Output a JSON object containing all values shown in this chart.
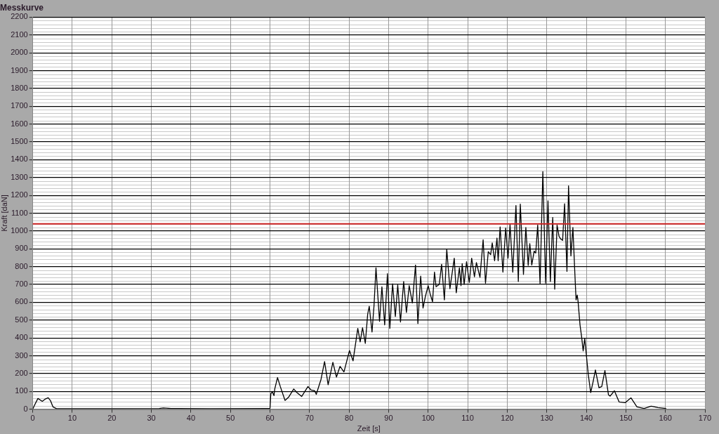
{
  "chart_data": {
    "type": "line",
    "title": "Messkurve",
    "xlabel": "Zeit [s]",
    "ylabel": "Kraft [daN]",
    "xlim": [
      0,
      170
    ],
    "xticks": [
      0,
      10,
      20,
      30,
      40,
      50,
      60,
      70,
      80,
      90,
      100,
      110,
      120,
      130,
      140,
      150,
      160,
      170
    ],
    "ylim": [
      0,
      2200
    ],
    "yticks": [
      0,
      100,
      200,
      300,
      400,
      500,
      600,
      700,
      800,
      900,
      1000,
      1100,
      1200,
      1300,
      1400,
      1500,
      1600,
      1700,
      1800,
      1900,
      2000,
      2100,
      2200
    ],
    "grid": true,
    "legend": false,
    "marker": "none",
    "line_style": "solid",
    "ref_lines": [
      {
        "axis": "y",
        "value": 1040,
        "color": "#cc2222"
      }
    ],
    "series": [
      {
        "color": "#000000",
        "x": [
          0,
          0.4,
          1.3,
          2.4,
          3.1,
          3.9,
          4.5,
          5.1,
          6,
          9.5,
          20,
          32,
          33,
          35,
          45,
          59.8,
          60,
          60.2,
          60.6,
          61,
          61.2,
          61.9,
          62.6,
          63.8,
          64.7,
          66,
          66.8,
          68,
          69.6,
          70.4,
          71.3,
          71.7,
          72.9,
          73.8,
          74.7,
          75.9,
          76.8,
          77.7,
          78.7,
          80.1,
          81,
          82.2,
          82.8,
          83.4,
          84.1,
          84.7,
          85.1,
          85.8,
          86.3,
          86.8,
          87.7,
          88.3,
          89,
          89.7,
          90.3,
          91,
          91.7,
          92.3,
          93,
          93.8,
          94.5,
          95.2,
          96,
          96.8,
          97.4,
          98.1,
          98.7,
          99.3,
          100,
          100.5,
          101.1,
          101.6,
          102,
          102.8,
          103.4,
          104.1,
          104.7,
          105.5,
          106.6,
          107.1,
          107.9,
          108.3,
          108.6,
          109.1,
          109.7,
          110.4,
          111,
          111.7,
          112.2,
          113.1,
          113.9,
          114.5,
          115.2,
          115.8,
          116.2,
          116.8,
          117.4,
          117.7,
          118.2,
          118.9,
          119.6,
          120.2,
          120.7,
          121.4,
          122.2,
          122.8,
          123.3,
          124.1,
          124.7,
          125.3,
          125.7,
          126.2,
          126.8,
          127.2,
          127.7,
          128.3,
          129,
          129.7,
          130.3,
          130.9,
          131.5,
          132,
          132.6,
          133.1,
          133.6,
          134,
          134.5,
          135.1,
          135.5,
          136.1,
          136.6,
          137.1,
          137.4,
          137.7,
          137.9,
          138.4,
          138.8,
          139.2,
          139.6,
          139.9,
          140.5,
          141.1,
          141.7,
          142.3,
          143.2,
          143.9,
          144.7,
          145.6,
          146,
          147.1,
          148.3,
          149.8,
          151.3,
          152.8,
          154.6,
          156.4,
          158.1,
          160.2
        ],
        "values": [
          0,
          20,
          60,
          44,
          56,
          64,
          47,
          13,
          3,
          3,
          3,
          4,
          7,
          4,
          3,
          4,
          4,
          87,
          97,
          76,
          113,
          177,
          127,
          49,
          67,
          113,
          93,
          71,
          127,
          107,
          103,
          83,
          167,
          267,
          137,
          263,
          180,
          240,
          209,
          329,
          271,
          453,
          377,
          457,
          369,
          533,
          577,
          433,
          580,
          793,
          493,
          687,
          473,
          760,
          453,
          703,
          520,
          697,
          489,
          716,
          543,
          693,
          596,
          809,
          480,
          747,
          567,
          633,
          693,
          647,
          603,
          769,
          687,
          700,
          813,
          613,
          897,
          676,
          847,
          653,
          793,
          693,
          817,
          700,
          827,
          711,
          847,
          743,
          823,
          740,
          951,
          707,
          884,
          867,
          933,
          833,
          960,
          833,
          1023,
          769,
          1017,
          847,
          1036,
          769,
          1143,
          716,
          1151,
          756,
          1020,
          807,
          929,
          809,
          887,
          876,
          1033,
          703,
          1333,
          707,
          1169,
          716,
          1076,
          673,
          1033,
          969,
          953,
          947,
          1153,
          773,
          1253,
          860,
          1020,
          760,
          613,
          640,
          607,
          473,
          407,
          327,
          396,
          327,
          193,
          93,
          153,
          220,
          120,
          127,
          217,
          80,
          73,
          103,
          40,
          36,
          63,
          13,
          4,
          17,
          9,
          4
        ]
      }
    ]
  }
}
